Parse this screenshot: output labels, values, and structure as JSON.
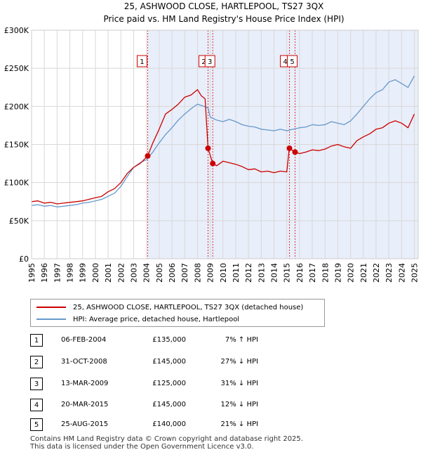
{
  "chart_data": {
    "type": "line",
    "title": "25, ASHWOOD CLOSE, HARTLEPOOL, TS27 3QX",
    "subtitle": "Price paid vs. HM Land Registry's House Price Index (HPI)",
    "xlabel": "",
    "ylabel": "",
    "xlim": [
      1995,
      2025.3
    ],
    "ylim": [
      0,
      300000
    ],
    "x_ticks": [
      "1995",
      "1996",
      "1997",
      "1998",
      "1999",
      "2000",
      "2001",
      "2002",
      "2003",
      "2004",
      "2005",
      "2006",
      "2007",
      "2008",
      "2009",
      "2010",
      "2011",
      "2012",
      "2013",
      "2014",
      "2015",
      "2016",
      "2017",
      "2018",
      "2019",
      "2020",
      "2021",
      "2022",
      "2023",
      "2024",
      "2025"
    ],
    "y_ticks": [
      {
        "value": 0,
        "label": "£0"
      },
      {
        "value": 50000,
        "label": "£50K"
      },
      {
        "value": 100000,
        "label": "£100K"
      },
      {
        "value": 150000,
        "label": "£150K"
      },
      {
        "value": 200000,
        "label": "£200K"
      },
      {
        "value": 250000,
        "label": "£250K"
      },
      {
        "value": 300000,
        "label": "£300K"
      }
    ],
    "shaded_range": [
      2004.1,
      2025.3
    ],
    "series": [
      {
        "name": "25, ASHWOOD CLOSE, HARTLEPOOL, TS27 3QX (detached house)",
        "color": "#cc0000",
        "x": [
          1995,
          1995.5,
          1996,
          1996.5,
          1997,
          1997.5,
          1998,
          1998.5,
          1999,
          1999.5,
          2000,
          2000.5,
          2001,
          2001.5,
          2002,
          2002.5,
          2003,
          2003.5,
          2004.1,
          2004.5,
          2005,
          2005.5,
          2006,
          2006.5,
          2007,
          2007.5,
          2008,
          2008.3,
          2008.6,
          2008.83,
          2009.2,
          2009.5,
          2010,
          2010.5,
          2011,
          2011.5,
          2012,
          2012.5,
          2013,
          2013.5,
          2014,
          2014.5,
          2015,
          2015.2,
          2015.65,
          2016,
          2016.5,
          2017,
          2017.5,
          2018,
          2018.5,
          2019,
          2019.5,
          2020,
          2020.5,
          2021,
          2021.5,
          2022,
          2022.5,
          2023,
          2023.5,
          2024,
          2024.5,
          2025
        ],
        "y": [
          75000,
          76000,
          73000,
          74000,
          72000,
          73000,
          74000,
          75000,
          76000,
          78000,
          80000,
          82000,
          88000,
          92000,
          100000,
          112000,
          120000,
          125000,
          135000,
          152000,
          170000,
          190000,
          196000,
          203000,
          212000,
          215000,
          222000,
          214000,
          210000,
          145000,
          125000,
          122000,
          128000,
          126000,
          124000,
          121000,
          117000,
          118000,
          114000,
          115000,
          113000,
          115000,
          114000,
          145000,
          140000,
          138000,
          140000,
          143000,
          142000,
          144000,
          148000,
          150000,
          147000,
          145000,
          155000,
          160000,
          164000,
          170000,
          172000,
          178000,
          181000,
          178000,
          172000,
          190000
        ]
      },
      {
        "name": "HPI: Average price, detached house, Hartlepool",
        "color": "#6699cc",
        "x": [
          1995,
          1995.5,
          1996,
          1996.5,
          1997,
          1997.5,
          1998,
          1998.5,
          1999,
          1999.5,
          2000,
          2000.5,
          2001,
          2001.5,
          2002,
          2002.5,
          2003,
          2003.5,
          2004,
          2004.5,
          2005,
          2005.5,
          2006,
          2006.5,
          2007,
          2007.5,
          2008,
          2008.5,
          2008.83,
          2009,
          2009.5,
          2010,
          2010.5,
          2011,
          2011.5,
          2012,
          2012.5,
          2013,
          2013.5,
          2014,
          2014.5,
          2015,
          2015.5,
          2016,
          2016.5,
          2017,
          2017.5,
          2018,
          2018.5,
          2019,
          2019.5,
          2020,
          2020.5,
          2021,
          2021.5,
          2022,
          2022.5,
          2023,
          2023.5,
          2024,
          2024.5,
          2025
        ],
        "y": [
          70000,
          71000,
          69000,
          70000,
          68000,
          69000,
          70000,
          71000,
          73000,
          74000,
          76000,
          78000,
          82000,
          86000,
          95000,
          108000,
          120000,
          126000,
          130000,
          140000,
          152000,
          163000,
          172000,
          182000,
          190000,
          197000,
          203000,
          200000,
          198000,
          186000,
          182000,
          180000,
          183000,
          180000,
          176000,
          174000,
          173000,
          170000,
          169000,
          168000,
          170000,
          168000,
          170000,
          172000,
          173000,
          176000,
          175000,
          176000,
          180000,
          178000,
          176000,
          181000,
          190000,
          200000,
          210000,
          218000,
          222000,
          232000,
          235000,
          230000,
          225000,
          240000
        ]
      }
    ],
    "sales": [
      {
        "id": "1",
        "x": 2004.1,
        "y": 135000
      },
      {
        "id": "2",
        "x": 2008.83,
        "y": 145000
      },
      {
        "id": "3",
        "x": 2009.2,
        "y": 125000
      },
      {
        "id": "4",
        "x": 2015.21,
        "y": 145000
      },
      {
        "id": "5",
        "x": 2015.65,
        "y": 140000
      }
    ]
  },
  "legend": {
    "property_label": "25, ASHWOOD CLOSE, HARTLEPOOL, TS27 3QX (detached house)",
    "hpi_label": "HPI: Average price, detached house, Hartlepool"
  },
  "transactions": [
    {
      "id": "1",
      "date": "06-FEB-2004",
      "price": "£135,000",
      "hpi": "7% ↑ HPI"
    },
    {
      "id": "2",
      "date": "31-OCT-2008",
      "price": "£145,000",
      "hpi": "27% ↓ HPI"
    },
    {
      "id": "3",
      "date": "13-MAR-2009",
      "price": "£125,000",
      "hpi": "31% ↓ HPI"
    },
    {
      "id": "4",
      "date": "20-MAR-2015",
      "price": "£145,000",
      "hpi": "12% ↓ HPI"
    },
    {
      "id": "5",
      "date": "25-AUG-2015",
      "price": "£140,000",
      "hpi": "21% ↓ HPI"
    }
  ],
  "footer": {
    "line1": "Contains HM Land Registry data © Crown copyright and database right 2025.",
    "line2": "This data is licensed under the Open Government Licence v3.0."
  }
}
